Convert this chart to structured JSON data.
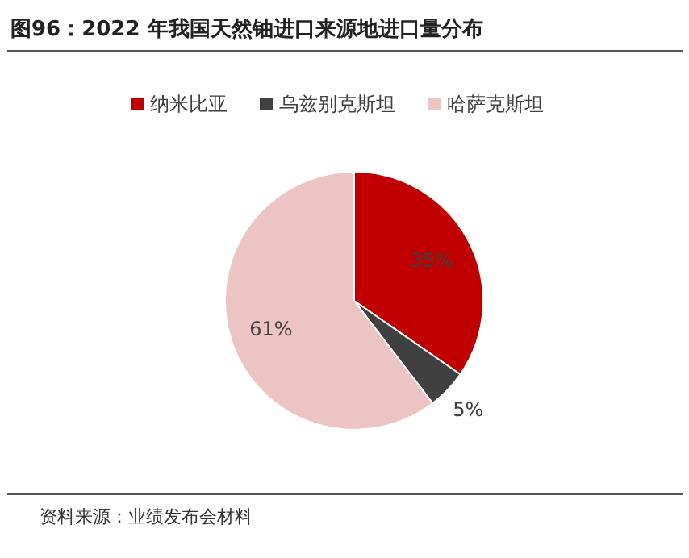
{
  "chart_data": {
    "type": "pie",
    "title": "图96：2022 年我国天然铀进口来源地进口量分布",
    "categories": [
      "纳米比亚",
      "乌兹别克斯坦",
      "哈萨克斯坦"
    ],
    "values": [
      35,
      5,
      61
    ],
    "colors": [
      "#c00000",
      "#404040",
      "#ecc4c4"
    ],
    "value_labels": [
      "35%",
      "5%",
      "61%"
    ],
    "legend": "top",
    "annotations": [
      "资料来源：业绩发布会材料"
    ]
  }
}
